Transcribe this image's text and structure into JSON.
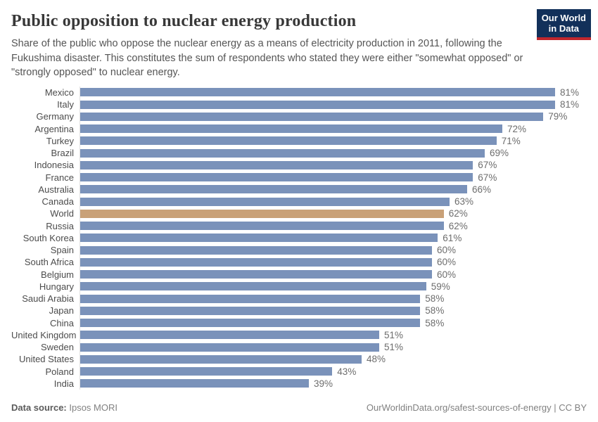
{
  "header": {
    "title": "Public opposition to nuclear energy production",
    "subtitle": "Share of the public who oppose the nuclear energy as a means of electricity production in 2011, following the Fukushima disaster. This constitutes the sum of respondents who stated they were either \"somewhat opposed\" or \"strongly opposed\" to nuclear energy."
  },
  "logo": {
    "line1": "Our World",
    "line2": "in Data",
    "bg_color": "#12305a",
    "accent_color": "#c0272d"
  },
  "chart_data": {
    "type": "bar",
    "orientation": "horizontal",
    "title": "Public opposition to nuclear energy production",
    "categories": [
      "Mexico",
      "Italy",
      "Germany",
      "Argentina",
      "Turkey",
      "Brazil",
      "Indonesia",
      "France",
      "Australia",
      "Canada",
      "World",
      "Russia",
      "South Korea",
      "Spain",
      "South Africa",
      "Belgium",
      "Hungary",
      "Saudi Arabia",
      "Japan",
      "China",
      "United Kingdom",
      "Sweden",
      "United States",
      "Poland",
      "India"
    ],
    "values": [
      81,
      81,
      79,
      72,
      71,
      69,
      67,
      67,
      66,
      63,
      62,
      62,
      61,
      60,
      60,
      60,
      59,
      58,
      58,
      58,
      51,
      51,
      48,
      43,
      39
    ],
    "value_suffix": "%",
    "highlight_category": "World",
    "xlim": [
      0,
      81
    ],
    "bar_color": "#7a92ba",
    "highlight_color": "#c9a178",
    "grid": false,
    "legend": false
  },
  "footer": {
    "source_label": "Data source:",
    "source_value": " Ipsos MORI",
    "link_text": "OurWorldinData.org/safest-sources-of-energy | CC BY"
  }
}
